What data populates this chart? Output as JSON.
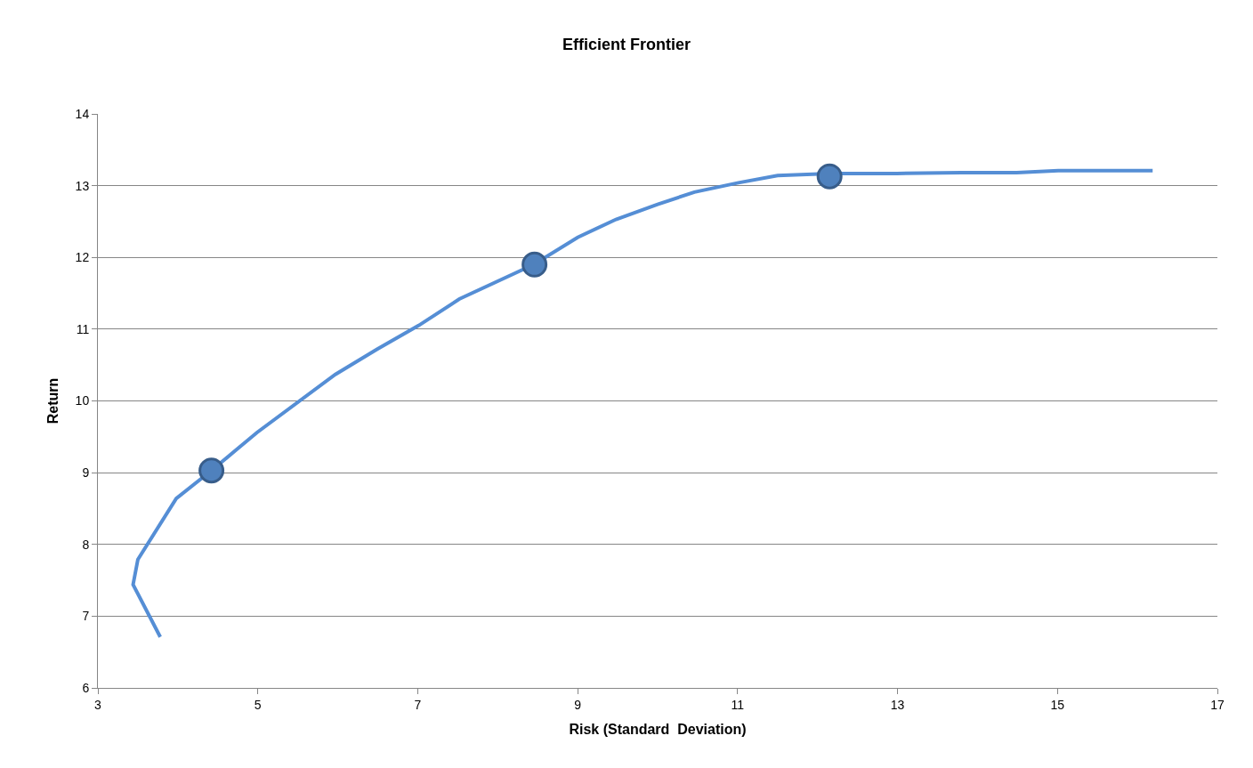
{
  "chart_data": {
    "type": "line",
    "title": "Efficient Frontier",
    "xlabel": "Risk (Standard  Deviation)",
    "ylabel": "Return",
    "xlim": [
      3,
      17
    ],
    "xticks": [
      3,
      5,
      7,
      9,
      11,
      13,
      15,
      17
    ],
    "ylim": [
      6,
      14
    ],
    "yticks": [
      6,
      7,
      8,
      9,
      10,
      11,
      12,
      13,
      14
    ],
    "grid": "y",
    "legend": false,
    "series": [
      {
        "color": "#558ed5",
        "marker": "none",
        "x": [
          3.78,
          3.44,
          3.5,
          3.98,
          4.42,
          4.99,
          5.97,
          6.49,
          7.01,
          7.52,
          8.45,
          9.0,
          9.48,
          10.0,
          10.46,
          11.01,
          11.5,
          12.16,
          12.99,
          13.8,
          14.49,
          15.01,
          16.19
        ],
        "values": [
          6.71,
          7.44,
          7.79,
          8.64,
          9.03,
          9.56,
          10.37,
          10.72,
          11.05,
          11.42,
          11.9,
          12.28,
          12.53,
          12.74,
          12.91,
          13.04,
          13.14,
          13.17,
          13.17,
          13.18,
          13.18,
          13.21,
          13.21
        ]
      },
      {
        "type": "scatter",
        "color": "#4f81bd",
        "marker": "circle",
        "x": [
          4.42,
          8.46,
          12.15
        ],
        "values": [
          9.03,
          11.9,
          13.13
        ]
      }
    ]
  }
}
